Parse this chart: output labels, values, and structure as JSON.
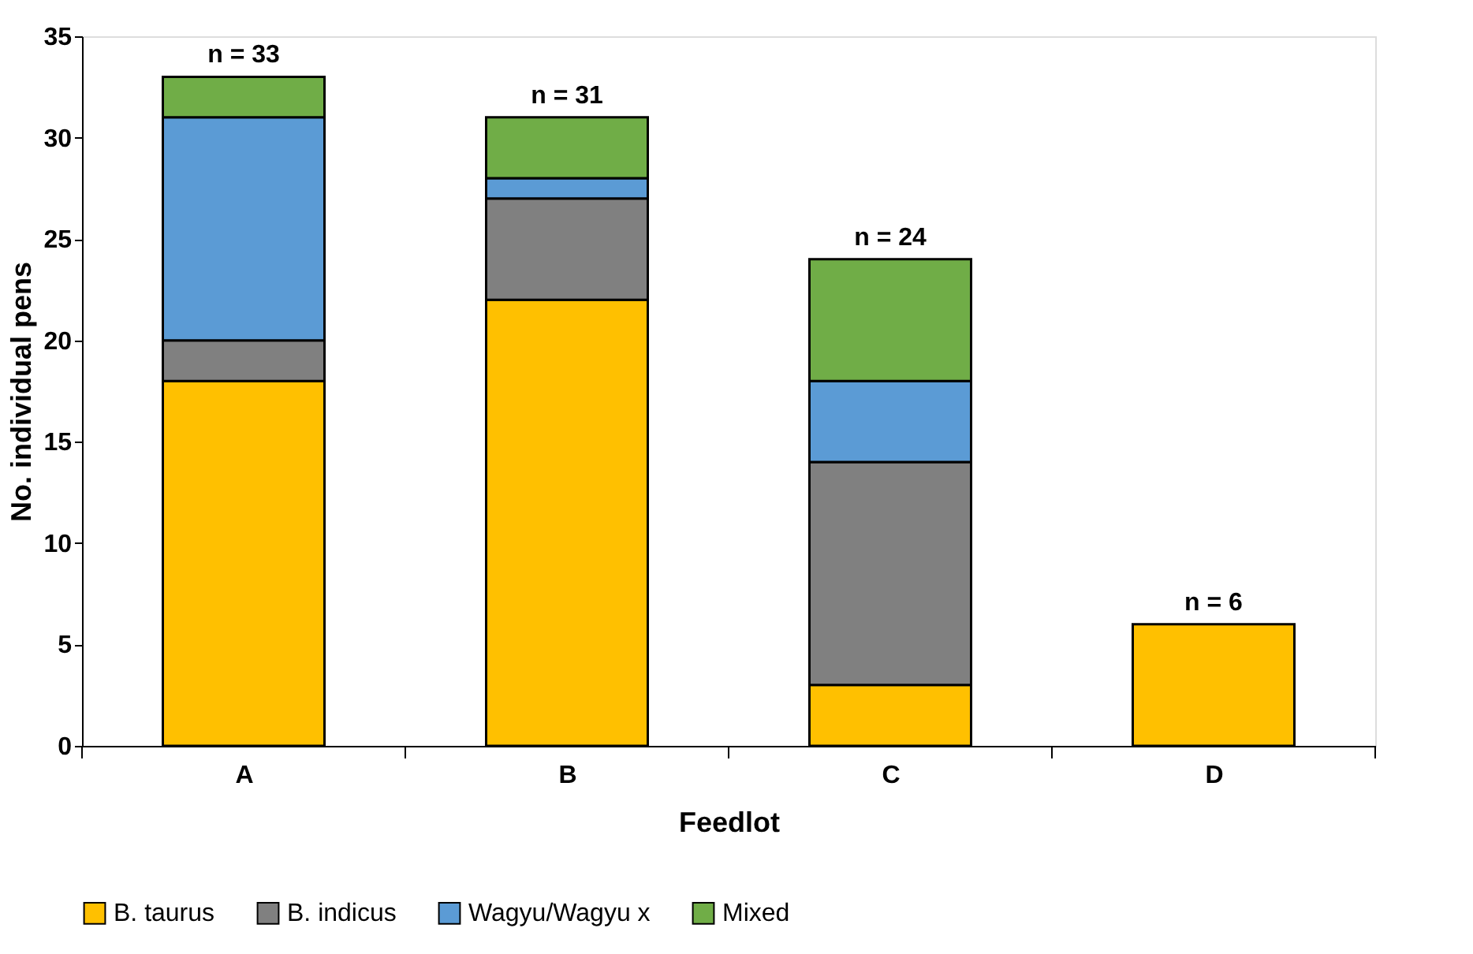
{
  "chart_data": {
    "type": "bar",
    "stacked": true,
    "xlabel": "Feedlot",
    "ylabel": "No. individual pens",
    "categories": [
      "A",
      "B",
      "C",
      "D"
    ],
    "series": [
      {
        "name": "B. taurus",
        "color": "#ffc000",
        "values": [
          18,
          22,
          3,
          6
        ]
      },
      {
        "name": "B. indicus",
        "color": "#808080",
        "values": [
          2,
          5,
          11,
          0
        ]
      },
      {
        "name": "Wagyu/Wagyu x",
        "color": "#5b9bd5",
        "values": [
          11,
          1,
          4,
          0
        ]
      },
      {
        "name": "Mixed",
        "color": "#70ad47",
        "values": [
          2,
          3,
          6,
          0
        ]
      }
    ],
    "totals": [
      "n = 33",
      "n = 31",
      "n = 24",
      "n = 6"
    ],
    "ylim": [
      0,
      35
    ],
    "yticks": [
      0,
      5,
      10,
      15,
      20,
      25,
      30,
      35
    ],
    "grid": false,
    "legend": "bottom"
  }
}
